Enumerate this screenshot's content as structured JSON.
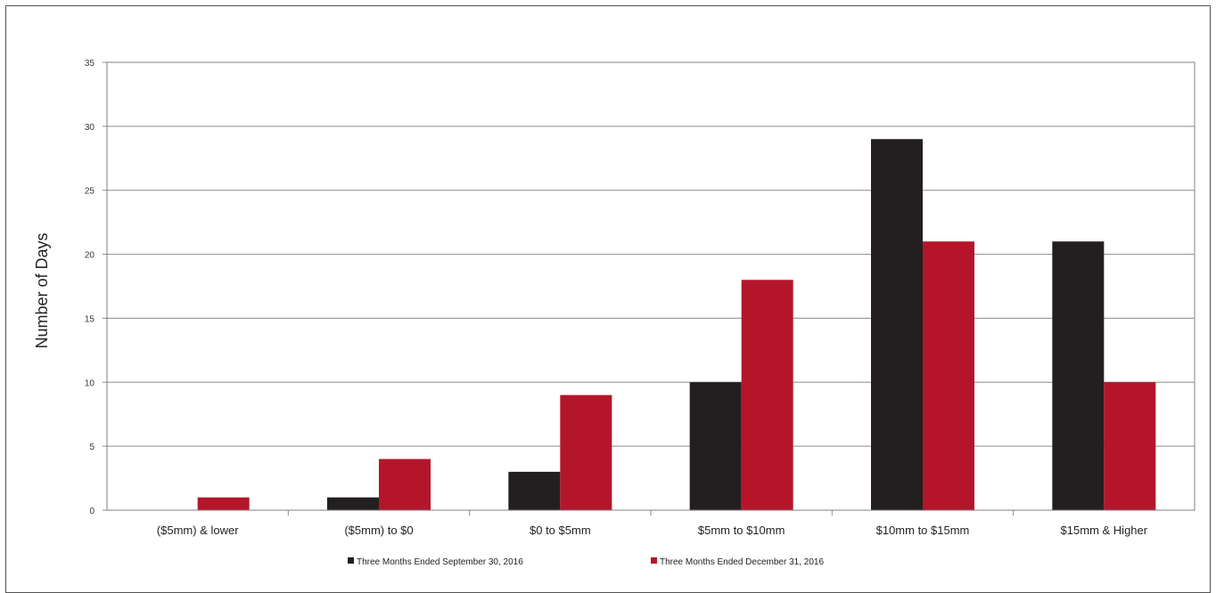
{
  "chart_data": {
    "type": "bar",
    "title": "",
    "xlabel": "",
    "ylabel": "Number of Days",
    "ylim": [
      0,
      35
    ],
    "yticks": [
      0,
      5,
      10,
      15,
      20,
      25,
      30,
      35
    ],
    "grid": true,
    "legend_position": "bottom",
    "categories": [
      "($5mm) & lower",
      "($5mm) to $0",
      "$0 to $5mm",
      "$5mm to $10mm",
      "$10mm to $15mm",
      "$15mm & Higher"
    ],
    "series": [
      {
        "name": "Three Months Ended September 30, 2016",
        "color": "#231f20",
        "values": [
          0,
          1,
          3,
          10,
          29,
          21
        ]
      },
      {
        "name": "Three Months Ended December 31, 2016",
        "color": "#b5152b",
        "values": [
          1,
          4,
          9,
          18,
          21,
          10
        ]
      }
    ]
  }
}
